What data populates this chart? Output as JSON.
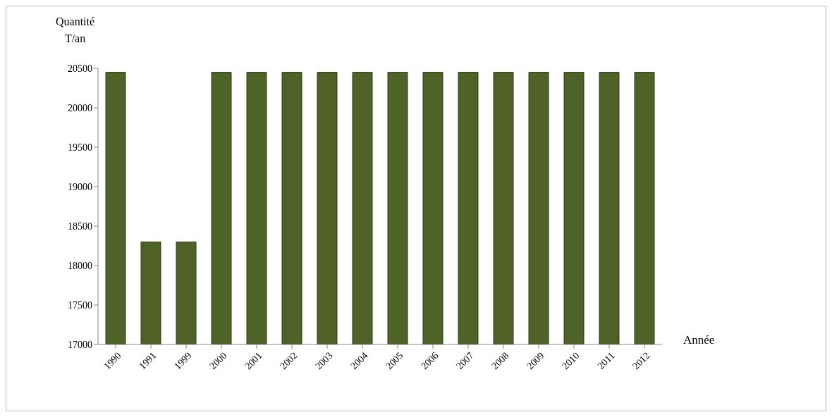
{
  "chart_data": {
    "type": "bar",
    "ylabel": "Quantité\nT/an",
    "xlabel": "Année",
    "categories": [
      "1990",
      "1991",
      "1999",
      "2000",
      "2001",
      "2002",
      "2003",
      "2004",
      "2005",
      "2006",
      "2007",
      "2008",
      "2009",
      "2010",
      "2011",
      "2012"
    ],
    "values": [
      20450,
      18300,
      18300,
      20450,
      20450,
      20450,
      20450,
      20450,
      20450,
      20450,
      20450,
      20450,
      20450,
      20450,
      20450,
      20450
    ],
    "color": "#4f6228",
    "ylim": [
      17000,
      20500
    ],
    "yticks": [
      17000,
      17500,
      18000,
      18500,
      19000,
      19500,
      20000,
      20500
    ],
    "grid": false,
    "legend": false
  }
}
